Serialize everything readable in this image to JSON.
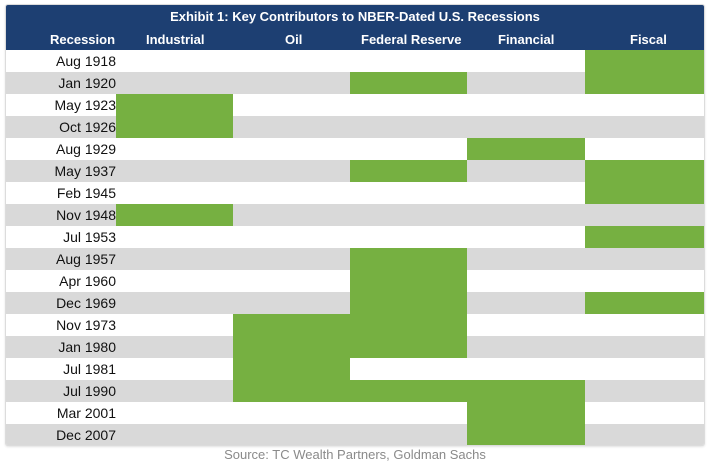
{
  "chart_data": {
    "type": "table",
    "title": "Exhibit 1: Key Contributors to NBER-Dated U.S. Recessions",
    "row_header": "Recession",
    "columns": [
      "Industrial",
      "Oil",
      "Federal Reserve",
      "Financial",
      "Fiscal"
    ],
    "rows": [
      {
        "label": "Aug 1918",
        "values": [
          0,
          0,
          0,
          0,
          1
        ]
      },
      {
        "label": "Jan 1920",
        "values": [
          0,
          0,
          1,
          0,
          1
        ]
      },
      {
        "label": "May 1923",
        "values": [
          1,
          0,
          0,
          0,
          0
        ]
      },
      {
        "label": "Oct 1926",
        "values": [
          1,
          0,
          0,
          0,
          0
        ]
      },
      {
        "label": "Aug 1929",
        "values": [
          0,
          0,
          0,
          1,
          0
        ]
      },
      {
        "label": "May 1937",
        "values": [
          0,
          0,
          1,
          0,
          1
        ]
      },
      {
        "label": "Feb 1945",
        "values": [
          0,
          0,
          0,
          0,
          1
        ]
      },
      {
        "label": "Nov 1948",
        "values": [
          1,
          0,
          0,
          0,
          0
        ]
      },
      {
        "label": "Jul 1953",
        "values": [
          0,
          0,
          0,
          0,
          1
        ]
      },
      {
        "label": "Aug 1957",
        "values": [
          0,
          0,
          1,
          0,
          0
        ]
      },
      {
        "label": "Apr 1960",
        "values": [
          0,
          0,
          1,
          0,
          0
        ]
      },
      {
        "label": "Dec 1969",
        "values": [
          0,
          0,
          1,
          0,
          1
        ]
      },
      {
        "label": "Nov 1973",
        "values": [
          0,
          1,
          1,
          0,
          0
        ]
      },
      {
        "label": "Jan 1980",
        "values": [
          0,
          1,
          1,
          0,
          0
        ]
      },
      {
        "label": "Jul 1981",
        "values": [
          0,
          1,
          0,
          0,
          0
        ]
      },
      {
        "label": "Jul 1990",
        "values": [
          0,
          1,
          1,
          1,
          0
        ]
      },
      {
        "label": "Mar 2001",
        "values": [
          0,
          0,
          0,
          1,
          0
        ]
      },
      {
        "label": "Dec 2007",
        "values": [
          0,
          0,
          0,
          1,
          0
        ]
      }
    ],
    "colors": {
      "header": "#1d3f72",
      "highlight": "#76b041",
      "stripe": "#d9d9d9"
    }
  },
  "source": "Source: TC Wealth Partners, Goldman Sachs"
}
